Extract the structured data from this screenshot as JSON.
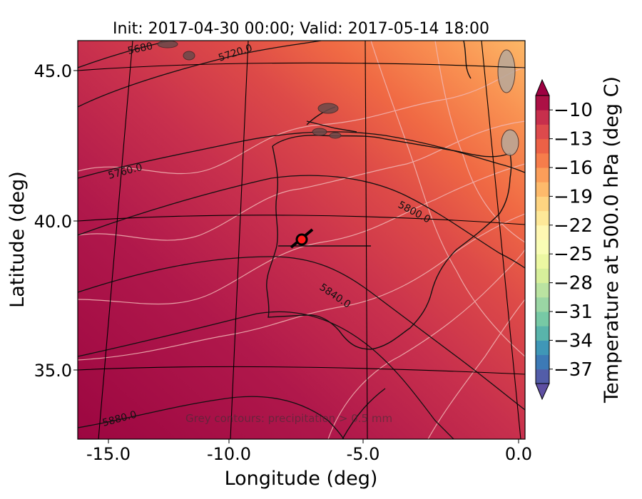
{
  "title": "Init: 2017-04-30 00:00; Valid: 2017-05-14 18:00",
  "map": {
    "x_ticks": [
      "-15.0",
      "-10.0",
      "-5.0",
      "0.0"
    ],
    "y_ticks": [
      "45.0",
      "40.0",
      "35.0"
    ],
    "x_label": "Longitude (deg)",
    "y_label": "Latitude (deg)",
    "lon_range": [
      -15.9,
      0.3
    ],
    "lat_range": [
      32.5,
      46.1
    ],
    "projection": "lambert (curved graticule)",
    "contour_labels": [
      "5680",
      "5720.0",
      "5760.0",
      "5800.0",
      "5840.0",
      "5880.0"
    ],
    "note": "Grey contours: precipitation > 0.5 mm",
    "marker": {
      "description": "red circle with black outline",
      "lon": -7.6,
      "lat": 39.3
    }
  },
  "colorbar": {
    "label": "Temperature at 500.0 hPa (deg C)",
    "ticks": [
      "−10",
      "−13",
      "−16",
      "−19",
      "−22",
      "−25",
      "−28",
      "−31",
      "−34",
      "−37"
    ],
    "tick_values": [
      -10,
      -13,
      -16,
      -19,
      -22,
      -25,
      -28,
      -31,
      -34,
      -37
    ],
    "range": [
      -38.5,
      -8.5
    ],
    "extend": "both",
    "colormap": "Spectral"
  },
  "colors": {
    "field_warm": "#9e0142",
    "field_mid": "#d53e4f",
    "field_orange": "#f46d43",
    "field_light": "#fdae61"
  }
}
